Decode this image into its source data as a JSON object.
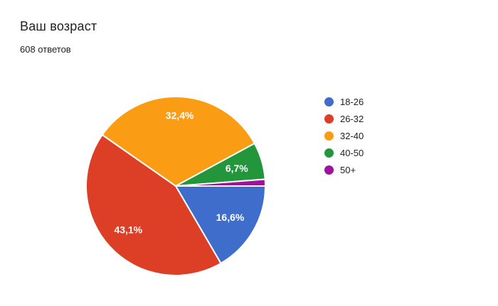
{
  "chart_data": {
    "type": "pie",
    "title": "Ваш возраст",
    "subtitle": "608 ответов",
    "responses": 608,
    "categories": [
      "18-26",
      "26-32",
      "32-40",
      "40-50",
      "50+"
    ],
    "values": [
      16.6,
      43.1,
      32.4,
      6.7,
      1.2
    ],
    "slice_labels": [
      "16,6%",
      "43,1%",
      "32,4%",
      "6,7%",
      ""
    ],
    "colors": [
      "#3E6DCB",
      "#DC3E26",
      "#FA9D14",
      "#23963C",
      "#9B149B"
    ],
    "slice_label_color": "#ffffff",
    "slice_border_color": "#ffffff",
    "title_color": "#212121",
    "text_color": "#212121",
    "background": "#ffffff",
    "legend_position": "right",
    "start_angle_deg_from_3oclock": 0,
    "direction": "clockwise",
    "min_label_percent": 3
  }
}
